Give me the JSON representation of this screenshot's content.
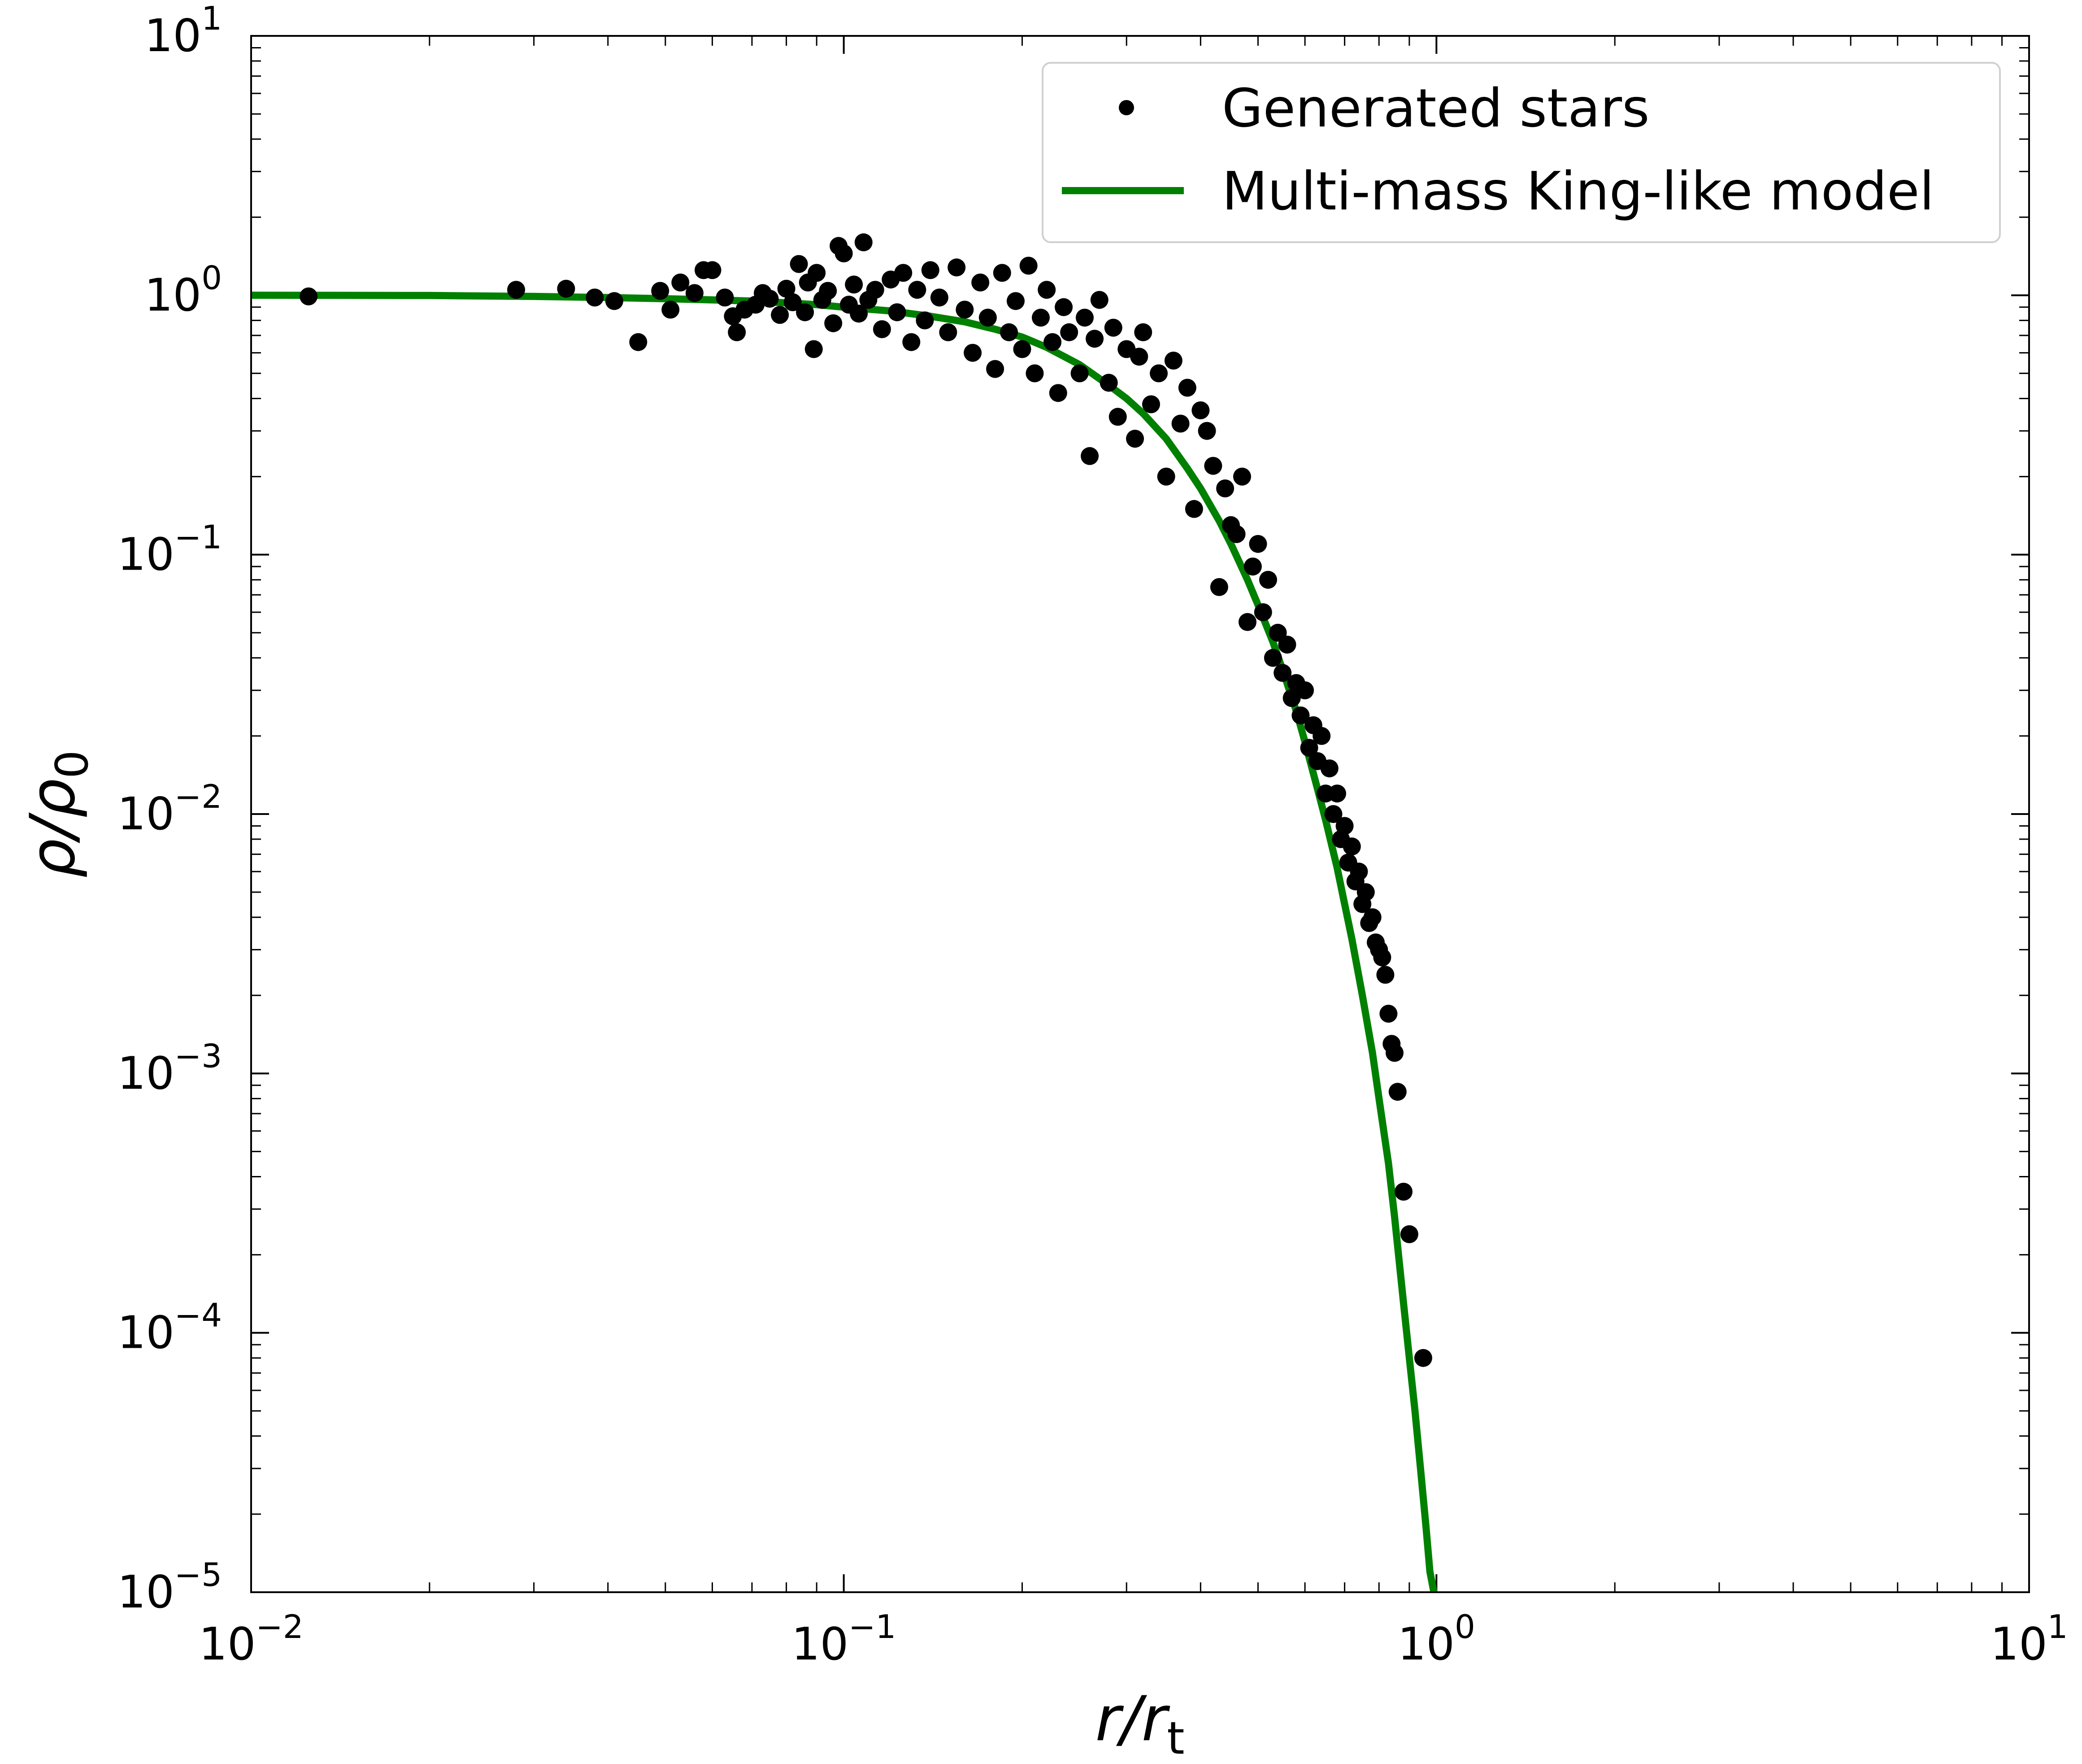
{
  "chart_data": {
    "type": "scatter",
    "xscale": "log",
    "yscale": "log",
    "xlim": [
      0.01,
      10
    ],
    "ylim": [
      1e-05,
      10
    ],
    "grid": false,
    "legend_position": "top-right",
    "xlabel": {
      "main": "r/r",
      "sub": "t"
    },
    "ylabel": {
      "main": "ρ/ρ",
      "sub": "0"
    },
    "x_ticks": [
      {
        "value": 0.01,
        "base": "10",
        "exp": "−2"
      },
      {
        "value": 0.1,
        "base": "10",
        "exp": "−1"
      },
      {
        "value": 1,
        "base": "10",
        "exp": "0"
      },
      {
        "value": 10,
        "base": "10",
        "exp": "1"
      }
    ],
    "y_ticks": [
      {
        "value": 1e-05,
        "base": "10",
        "exp": "−5"
      },
      {
        "value": 0.0001,
        "base": "10",
        "exp": "−4"
      },
      {
        "value": 0.001,
        "base": "10",
        "exp": "−3"
      },
      {
        "value": 0.01,
        "base": "10",
        "exp": "−2"
      },
      {
        "value": 0.1,
        "base": "10",
        "exp": "−1"
      },
      {
        "value": 1,
        "base": "10",
        "exp": "0"
      },
      {
        "value": 10,
        "base": "10",
        "exp": "1"
      }
    ],
    "series": [
      {
        "name": "Generated stars",
        "kind": "scatter",
        "color": "#000000",
        "points": [
          [
            0.0125,
            0.99
          ],
          [
            0.028,
            1.05
          ],
          [
            0.034,
            1.06
          ],
          [
            0.038,
            0.98
          ],
          [
            0.041,
            0.95
          ],
          [
            0.045,
            0.66
          ],
          [
            0.049,
            1.04
          ],
          [
            0.051,
            0.88
          ],
          [
            0.053,
            1.12
          ],
          [
            0.056,
            1.02
          ],
          [
            0.058,
            1.25
          ],
          [
            0.06,
            1.25
          ],
          [
            0.063,
            0.98
          ],
          [
            0.065,
            0.83
          ],
          [
            0.066,
            0.72
          ],
          [
            0.068,
            0.88
          ],
          [
            0.071,
            0.92
          ],
          [
            0.073,
            1.02
          ],
          [
            0.075,
            0.97
          ],
          [
            0.078,
            0.84
          ],
          [
            0.08,
            1.06
          ],
          [
            0.082,
            0.94
          ],
          [
            0.084,
            1.32
          ],
          [
            0.086,
            0.86
          ],
          [
            0.087,
            1.12
          ],
          [
            0.089,
            0.62
          ],
          [
            0.09,
            1.22
          ],
          [
            0.092,
            0.96
          ],
          [
            0.094,
            1.04
          ],
          [
            0.096,
            0.78
          ],
          [
            0.098,
            1.55
          ],
          [
            0.1,
            1.45
          ],
          [
            0.102,
            0.92
          ],
          [
            0.104,
            1.1
          ],
          [
            0.106,
            0.85
          ],
          [
            0.108,
            1.6
          ],
          [
            0.11,
            0.96
          ],
          [
            0.113,
            1.05
          ],
          [
            0.116,
            0.74
          ],
          [
            0.12,
            1.15
          ],
          [
            0.123,
            0.86
          ],
          [
            0.126,
            1.22
          ],
          [
            0.13,
            0.66
          ],
          [
            0.133,
            1.05
          ],
          [
            0.137,
            0.8
          ],
          [
            0.14,
            1.25
          ],
          [
            0.145,
            0.98
          ],
          [
            0.15,
            0.72
          ],
          [
            0.155,
            1.28
          ],
          [
            0.16,
            0.88
          ],
          [
            0.165,
            0.6
          ],
          [
            0.17,
            1.12
          ],
          [
            0.175,
            0.82
          ],
          [
            0.18,
            0.52
          ],
          [
            0.185,
            1.22
          ],
          [
            0.19,
            0.72
          ],
          [
            0.195,
            0.95
          ],
          [
            0.2,
            0.62
          ],
          [
            0.205,
            1.3
          ],
          [
            0.21,
            0.5
          ],
          [
            0.215,
            0.82
          ],
          [
            0.22,
            1.05
          ],
          [
            0.225,
            0.66
          ],
          [
            0.23,
            0.42
          ],
          [
            0.235,
            0.9
          ],
          [
            0.24,
            0.72
          ],
          [
            0.25,
            0.5
          ],
          [
            0.255,
            0.82
          ],
          [
            0.26,
            0.24
          ],
          [
            0.265,
            0.68
          ],
          [
            0.27,
            0.96
          ],
          [
            0.28,
            0.46
          ],
          [
            0.285,
            0.75
          ],
          [
            0.29,
            0.34
          ],
          [
            0.3,
            0.62
          ],
          [
            0.31,
            0.28
          ],
          [
            0.315,
            0.58
          ],
          [
            0.32,
            0.72
          ],
          [
            0.33,
            0.38
          ],
          [
            0.34,
            0.5
          ],
          [
            0.35,
            0.2
          ],
          [
            0.36,
            0.56
          ],
          [
            0.37,
            0.32
          ],
          [
            0.38,
            0.44
          ],
          [
            0.39,
            0.15
          ],
          [
            0.4,
            0.36
          ],
          [
            0.41,
            0.3
          ],
          [
            0.42,
            0.22
          ],
          [
            0.43,
            0.075
          ],
          [
            0.44,
            0.18
          ],
          [
            0.45,
            0.13
          ],
          [
            0.46,
            0.12
          ],
          [
            0.47,
            0.2
          ],
          [
            0.48,
            0.055
          ],
          [
            0.49,
            0.09
          ],
          [
            0.5,
            0.11
          ],
          [
            0.51,
            0.06
          ],
          [
            0.52,
            0.08
          ],
          [
            0.53,
            0.04
          ],
          [
            0.54,
            0.05
          ],
          [
            0.55,
            0.035
          ],
          [
            0.56,
            0.045
          ],
          [
            0.57,
            0.028
          ],
          [
            0.58,
            0.032
          ],
          [
            0.59,
            0.024
          ],
          [
            0.6,
            0.03
          ],
          [
            0.61,
            0.018
          ],
          [
            0.62,
            0.022
          ],
          [
            0.63,
            0.016
          ],
          [
            0.64,
            0.02
          ],
          [
            0.65,
            0.012
          ],
          [
            0.66,
            0.015
          ],
          [
            0.67,
            0.01
          ],
          [
            0.68,
            0.012
          ],
          [
            0.69,
            0.008
          ],
          [
            0.7,
            0.009
          ],
          [
            0.71,
            0.0065
          ],
          [
            0.72,
            0.0075
          ],
          [
            0.73,
            0.0055
          ],
          [
            0.74,
            0.006
          ],
          [
            0.75,
            0.0045
          ],
          [
            0.76,
            0.005
          ],
          [
            0.77,
            0.0038
          ],
          [
            0.78,
            0.004
          ],
          [
            0.79,
            0.0032
          ],
          [
            0.8,
            0.003
          ],
          [
            0.81,
            0.0028
          ],
          [
            0.82,
            0.0024
          ],
          [
            0.83,
            0.0017
          ],
          [
            0.84,
            0.0013
          ],
          [
            0.85,
            0.0012
          ],
          [
            0.86,
            0.00085
          ],
          [
            0.88,
            0.00035
          ],
          [
            0.9,
            0.00024
          ],
          [
            0.95,
            8e-05
          ]
        ]
      },
      {
        "name": "Multi-mass King-like model",
        "kind": "line",
        "color": "#008000",
        "points": [
          [
            0.01,
            1.0
          ],
          [
            0.02,
            0.998
          ],
          [
            0.03,
            0.99
          ],
          [
            0.04,
            0.98
          ],
          [
            0.05,
            0.97
          ],
          [
            0.06,
            0.96
          ],
          [
            0.07,
            0.95
          ],
          [
            0.08,
            0.935
          ],
          [
            0.09,
            0.92
          ],
          [
            0.1,
            0.9
          ],
          [
            0.12,
            0.87
          ],
          [
            0.14,
            0.83
          ],
          [
            0.16,
            0.79
          ],
          [
            0.18,
            0.74
          ],
          [
            0.2,
            0.69
          ],
          [
            0.22,
            0.63
          ],
          [
            0.25,
            0.54
          ],
          [
            0.28,
            0.45
          ],
          [
            0.3,
            0.4
          ],
          [
            0.32,
            0.35
          ],
          [
            0.35,
            0.28
          ],
          [
            0.38,
            0.215
          ],
          [
            0.4,
            0.18
          ],
          [
            0.43,
            0.135
          ],
          [
            0.45,
            0.11
          ],
          [
            0.48,
            0.08
          ],
          [
            0.5,
            0.064
          ],
          [
            0.53,
            0.046
          ],
          [
            0.55,
            0.036
          ],
          [
            0.58,
            0.025
          ],
          [
            0.6,
            0.019
          ],
          [
            0.63,
            0.0125
          ],
          [
            0.65,
            0.0095
          ],
          [
            0.68,
            0.0062
          ],
          [
            0.7,
            0.0045
          ],
          [
            0.72,
            0.0033
          ],
          [
            0.75,
            0.002
          ],
          [
            0.78,
            0.0012
          ],
          [
            0.8,
            0.0008
          ],
          [
            0.83,
            0.00045
          ],
          [
            0.85,
            0.00028
          ],
          [
            0.88,
            0.00013
          ],
          [
            0.9,
            8e-05
          ],
          [
            0.92,
            5e-05
          ],
          [
            0.94,
            3e-05
          ],
          [
            0.96,
            1.8e-05
          ],
          [
            0.975,
            1.2e-05
          ],
          [
            0.99,
            1e-05
          ]
        ]
      }
    ]
  }
}
